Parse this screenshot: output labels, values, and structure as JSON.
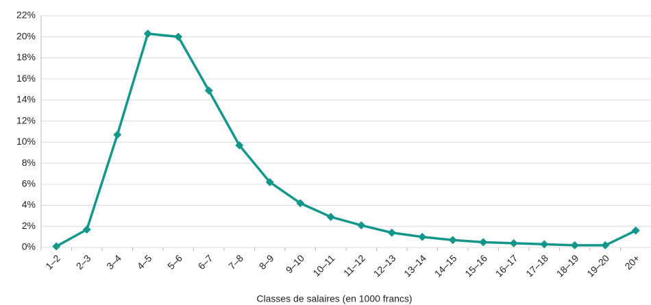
{
  "chart_data": {
    "type": "line",
    "x_label": "Classes de salaires (en 1000 francs)",
    "categories": [
      "1–2",
      "2–3",
      "3–4",
      "4–5",
      "5–6",
      "6–7",
      "7–8",
      "8–9",
      "9–10",
      "10–11",
      "11–12",
      "12–13",
      "13–14",
      "14–15",
      "15–16",
      "16–17",
      "17–18",
      "18–19",
      "19–20",
      "20+"
    ],
    "values": [
      0.1,
      1.7,
      10.7,
      20.3,
      20.0,
      14.9,
      9.7,
      6.2,
      4.2,
      2.9,
      2.1,
      1.4,
      1.0,
      0.7,
      0.5,
      0.4,
      0.3,
      0.2,
      0.2,
      1.6
    ],
    "color": "#14978a",
    "ylim": [
      0,
      22
    ],
    "yticks": [
      {
        "value": 0,
        "label": "0%"
      },
      {
        "value": 2,
        "label": "2%"
      },
      {
        "value": 4,
        "label": "4%"
      },
      {
        "value": 6,
        "label": "6%"
      },
      {
        "value": 8,
        "label": "8%"
      },
      {
        "value": 10,
        "label": "10%"
      },
      {
        "value": 12,
        "label": "12%"
      },
      {
        "value": 14,
        "label": "14%"
      },
      {
        "value": 16,
        "label": "16%"
      },
      {
        "value": 18,
        "label": "18%"
      },
      {
        "value": 20,
        "label": "20%"
      },
      {
        "value": 22,
        "label": "22%"
      }
    ],
    "grid": true
  }
}
